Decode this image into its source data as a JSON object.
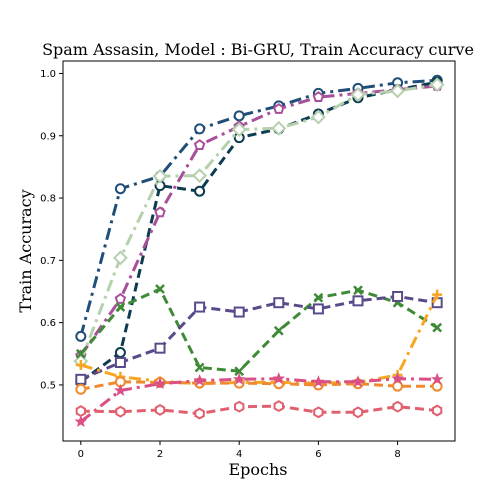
{
  "chart_data": {
    "type": "line",
    "title": "Spam Assasin, Model : Bi-GRU, Train Accuracy curve",
    "xlabel": "Epochs",
    "ylabel": "Train Accuracy",
    "xlim": [
      -0.45,
      9.45
    ],
    "ylim": [
      0.41,
      1.02
    ],
    "xticks": [
      0,
      2,
      4,
      6,
      8
    ],
    "yticks": [
      0.5,
      0.6,
      0.7,
      0.8,
      0.9,
      1.0
    ],
    "xtick_labels": [
      "0",
      "2",
      "4",
      "6",
      "8"
    ],
    "ytick_labels": [
      "0.5",
      "0.6",
      "0.7",
      "0.8",
      "0.9",
      "1.0"
    ],
    "grid": false,
    "legend": "none",
    "x": [
      0,
      1,
      2,
      3,
      4,
      5,
      6,
      7,
      8,
      9
    ],
    "series": [
      {
        "color": "#1f4e79",
        "dash": "dashdot",
        "marker": "circle",
        "values": [
          0.578,
          0.815,
          0.835,
          0.911,
          0.932,
          0.948,
          0.968,
          0.976,
          0.985,
          0.989
        ]
      },
      {
        "color": "#0d3b4f",
        "dash": "dashed",
        "marker": "circle",
        "values": [
          0.505,
          0.552,
          0.82,
          0.811,
          0.897,
          0.911,
          0.935,
          0.961,
          0.974,
          0.986
        ]
      },
      {
        "color": "#a84f9a",
        "dash": "dashdot",
        "marker": "pentagon",
        "values": [
          0.547,
          0.638,
          0.777,
          0.885,
          0.915,
          0.943,
          0.962,
          0.968,
          0.974,
          0.98
        ]
      },
      {
        "color": "#b5d0ad",
        "dash": "dashdot",
        "marker": "diamond",
        "values": [
          0.538,
          0.704,
          0.835,
          0.836,
          0.91,
          0.912,
          0.93,
          0.966,
          0.972,
          0.982
        ]
      },
      {
        "color": "#3f8a36",
        "dash": "dashed",
        "marker": "x",
        "values": [
          0.55,
          0.625,
          0.654,
          0.528,
          0.522,
          0.587,
          0.64,
          0.652,
          0.632,
          0.592
        ]
      },
      {
        "color": "#5b4a8a",
        "dash": "dashed",
        "marker": "square",
        "values": [
          0.509,
          0.536,
          0.559,
          0.625,
          0.617,
          0.632,
          0.622,
          0.635,
          0.642,
          0.632
        ]
      },
      {
        "color": "#f5a623",
        "dash": "dashdot",
        "marker": "plus",
        "values": [
          0.532,
          0.513,
          0.506,
          0.502,
          0.504,
          0.504,
          0.503,
          0.504,
          0.516,
          0.645
        ]
      },
      {
        "color": "#f08a30",
        "dash": "dashed",
        "marker": "circle",
        "values": [
          0.493,
          0.505,
          0.504,
          0.503,
          0.503,
          0.502,
          0.5,
          0.502,
          0.498,
          0.498
        ]
      },
      {
        "color": "#d94f86",
        "dash": "dashdot",
        "marker": "star",
        "values": [
          0.441,
          0.491,
          0.502,
          0.507,
          0.509,
          0.51,
          0.505,
          0.505,
          0.51,
          0.509
        ]
      },
      {
        "color": "#e0606e",
        "dash": "dashed",
        "marker": "hexagon",
        "values": [
          0.458,
          0.457,
          0.46,
          0.454,
          0.465,
          0.466,
          0.456,
          0.456,
          0.465,
          0.459
        ]
      }
    ]
  }
}
